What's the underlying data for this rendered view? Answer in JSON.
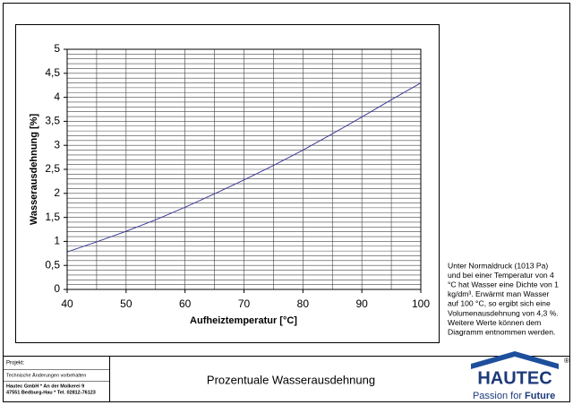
{
  "chart_data": {
    "type": "line",
    "x_label": "Aufheiztemperatur [°C]",
    "y_label": "Wasserausdehnung [%]",
    "x": [
      40,
      45,
      50,
      55,
      60,
      65,
      70,
      75,
      80,
      85,
      90,
      95,
      100
    ],
    "series": [
      {
        "color": "#3a3a9a",
        "values": [
          0.78,
          0.99,
          1.21,
          1.45,
          1.71,
          1.99,
          2.28,
          2.58,
          2.9,
          3.24,
          3.59,
          3.95,
          4.3
        ]
      }
    ],
    "xlim": [
      40,
      100
    ],
    "xticks": [
      40,
      50,
      60,
      70,
      80,
      90,
      100
    ],
    "ylim": [
      0,
      5
    ],
    "yticks": [
      0,
      {
        "value": 0.5,
        "label": "0,5"
      },
      1,
      {
        "value": 1.5,
        "label": "1,5"
      },
      2,
      {
        "value": 2.5,
        "label": "2,5"
      },
      3,
      {
        "value": 3.5,
        "label": "3,5"
      },
      4,
      {
        "value": 4.5,
        "label": "4,5"
      },
      5
    ],
    "grid": true,
    "x_grid_step": 5,
    "y_grid_step": 0.1
  },
  "note": [
    "Unter Normaldruck (1013 Pa)",
    "und bei einer Temperatur von 4",
    "°C hat Wasser eine Dichte von 1",
    "kg/dm³. Erwärmt man Wasser",
    "auf 100 °C, so ergibt sich eine",
    "Volumenausdehnung von 4,3 %.",
    "Weitere Werte können dem",
    "Diagramm entnommen werden."
  ],
  "footer": {
    "project": "Projekt:",
    "disclaimer": "Technische Änderungen vorbehalten",
    "address_1": "Hautec GmbH * An der Molkerei 9",
    "address_2": "47551 Bedburg-Hau * Tel. 02812-76123",
    "title": "Prozentuale Wasserausdehnung"
  },
  "logo": {
    "name": "HAUTEC",
    "registered": "®",
    "tagline_1": "Passion for",
    "tagline_2": "Future"
  }
}
